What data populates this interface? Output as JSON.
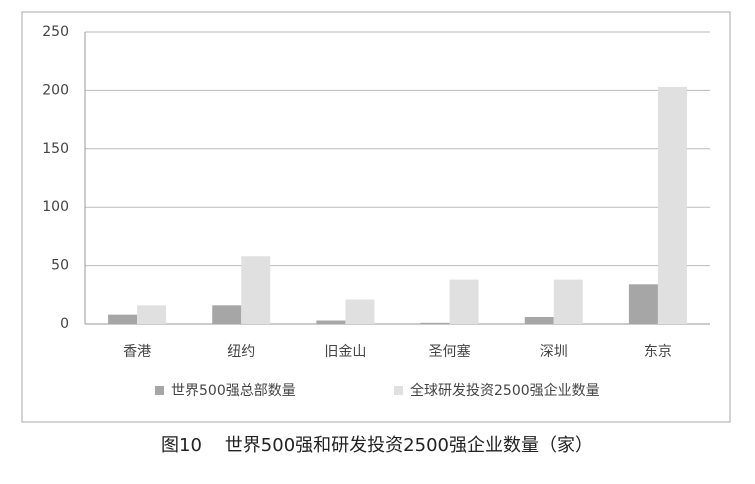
{
  "chart_data": {
    "type": "bar",
    "title": "图10    世界500强和研发投资2500强企业数量（家）",
    "categories": [
      "香港",
      "纽约",
      "旧金山",
      "圣何塞",
      "深圳",
      "东京"
    ],
    "series": [
      {
        "name": "世界500强总部数量",
        "color": "#a6a6a6",
        "values": [
          8,
          16,
          3,
          1,
          6,
          34
        ]
      },
      {
        "name": "全球研发投资2500强企业数量",
        "color": "#e0e0e0",
        "values": [
          16,
          58,
          21,
          38,
          38,
          203
        ]
      }
    ],
    "ylim": [
      0,
      250
    ],
    "yticks": [
      0,
      50,
      100,
      150,
      200,
      250
    ],
    "grid": true,
    "legend": "bottom"
  }
}
